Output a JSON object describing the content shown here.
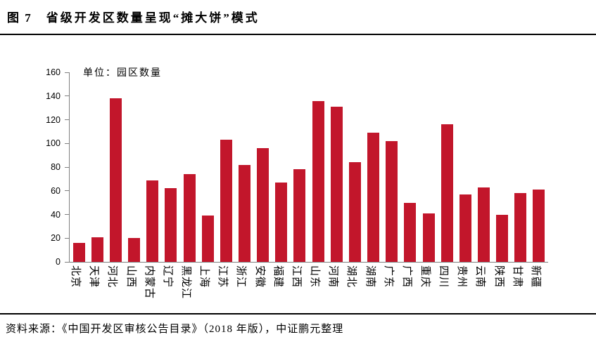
{
  "header": {
    "figure_label": "图 7",
    "title": "省级开发区数量呈现“摊大饼”模式"
  },
  "chart_data": {
    "type": "bar",
    "title": "图 7 省级开发区数量呈现“摊大饼”模式",
    "unit_label": "单位：园区数量",
    "categories": [
      "北京",
      "天津",
      "河北",
      "山西",
      "内蒙古",
      "辽宁",
      "黑龙江",
      "上海",
      "江苏",
      "浙江",
      "安徽",
      "福建",
      "江西",
      "山东",
      "河南",
      "湖北",
      "湖南",
      "广东",
      "广西",
      "重庆",
      "四川",
      "贵州",
      "云南",
      "陕西",
      "甘肃",
      "新疆"
    ],
    "values": [
      16,
      21,
      138,
      20,
      69,
      62,
      74,
      39,
      103,
      82,
      96,
      67,
      78,
      136,
      131,
      84,
      109,
      102,
      50,
      41,
      116,
      57,
      63,
      40,
      58,
      61
    ],
    "ylim": [
      0,
      160
    ],
    "ytick_step": 20,
    "xlabel": "",
    "ylabel": "",
    "grid": false,
    "legend": "none",
    "bar_color": "#C2162B",
    "axis_color": "#7F7F7F"
  },
  "footer": {
    "source": "资料来源：《中国开发区审核公告目录》（2018 年版），中证鹏元整理"
  }
}
